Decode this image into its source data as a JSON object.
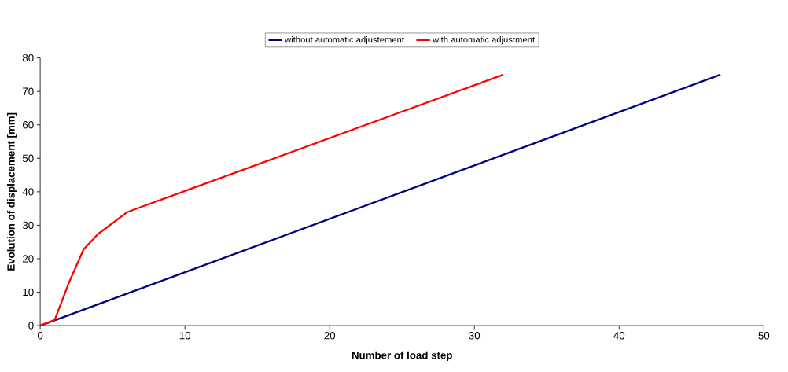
{
  "chart_data": {
    "type": "line",
    "xlabel": "Number of load step",
    "ylabel": "Evolution of displacement [mm]",
    "xlim": [
      0,
      50
    ],
    "ylim": [
      0,
      80
    ],
    "xticks": [
      0,
      10,
      20,
      30,
      40,
      50
    ],
    "yticks": [
      0,
      10,
      20,
      30,
      40,
      50,
      60,
      70,
      80
    ],
    "grid": false,
    "legend": "top",
    "marker": "none",
    "line_style": "solid",
    "series": [
      {
        "name": "without automatic adjustement",
        "color": "#000080",
        "x": [
          0,
          47
        ],
        "values": [
          0,
          75
        ]
      },
      {
        "name": "with automatic adjustment",
        "color": "#ff0000",
        "x": [
          0,
          1,
          2,
          3,
          4,
          6,
          7,
          32
        ],
        "values": [
          0,
          1.7,
          13,
          22.8,
          27.4,
          33.9,
          35.5,
          75
        ]
      }
    ]
  }
}
